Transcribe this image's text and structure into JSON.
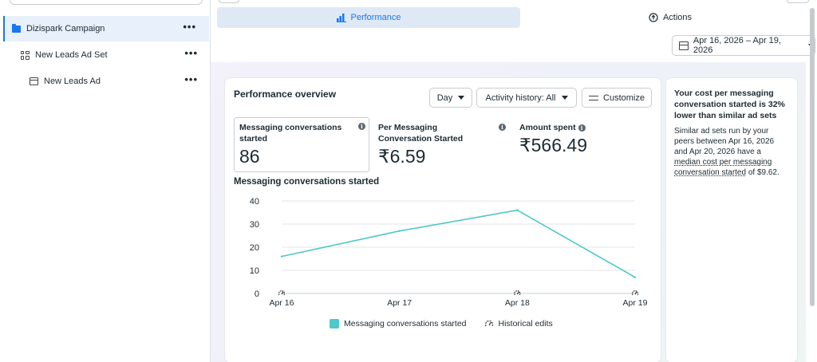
{
  "sidebar": {
    "items": [
      {
        "label": "Dizispark Campaign",
        "icon": "folder-icon",
        "selected": true
      },
      {
        "label": "New Leads Ad Set",
        "icon": "ad-set-grid-icon"
      },
      {
        "label": "New Leads Ad",
        "icon": "ad-icon"
      }
    ],
    "more_label": "•••"
  },
  "tabs": [
    {
      "label": "Performance",
      "icon": "bar-chart-icon",
      "active": true
    },
    {
      "label": "Actions",
      "icon": "actions-circle-icon"
    }
  ],
  "date_range": {
    "label": "Apr 16, 2026 – Apr 19, 2026",
    "icon": "calendar-icon"
  },
  "performance": {
    "title": "Performance overview",
    "controls": {
      "day": "Day",
      "activity": "Activity history: All",
      "customize": "Customize"
    },
    "metrics": [
      {
        "label": "Messaging conversations started",
        "value": "86"
      },
      {
        "label": "Per Messaging Conversation Started",
        "value": "₹6.59"
      },
      {
        "label": "Amount spent",
        "value": "₹566.49"
      }
    ],
    "chart_title": "Messaging conversations started",
    "legend": {
      "series": "Messaging conversations started",
      "edits": "Historical edits"
    }
  },
  "chart_data": {
    "type": "line",
    "x": [
      "Apr 16",
      "Apr 17",
      "Apr 18",
      "Apr 19"
    ],
    "x_values": [
      0,
      1,
      2,
      3
    ],
    "series": [
      {
        "name": "Messaging conversations started",
        "values": [
          16,
          27,
          36,
          7
        ],
        "color": "#4ec8c8"
      }
    ],
    "yticks": [
      0,
      10,
      20,
      30,
      40
    ],
    "ylim": [
      0,
      40
    ],
    "grid": true,
    "legend_position": "bottom",
    "historical_edit_markers": [
      "Apr 16",
      "Apr 18",
      "Apr 19"
    ]
  },
  "insight": {
    "title": "Your cost per messaging conversation started is 32% lower than similar ad sets",
    "body_pre": "Similar ad sets run by your peers between Apr 16, 2026 and Apr 20, 2026 have a ",
    "body_link": "median cost per messaging conversation started",
    "body_post": " of $9.62."
  }
}
